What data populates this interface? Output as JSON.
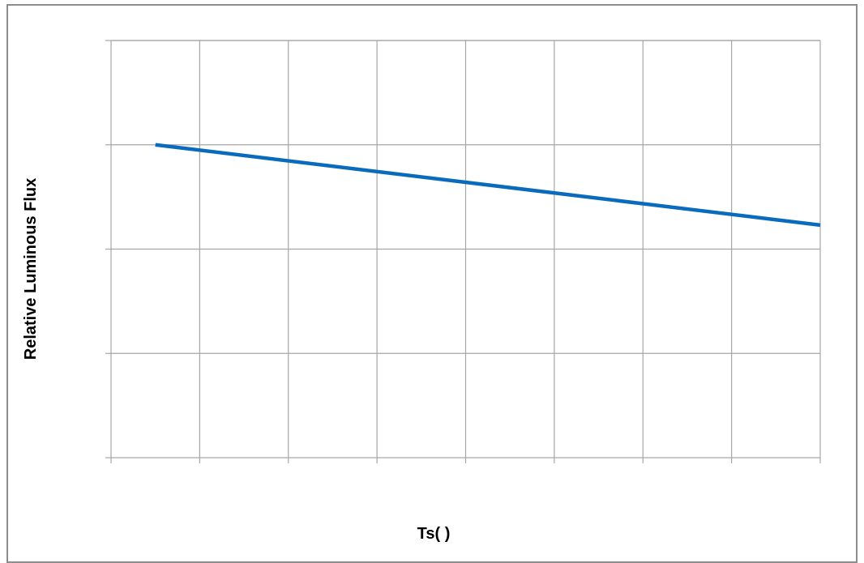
{
  "chart_data": {
    "type": "line",
    "title": "",
    "xlabel": "Ts(   )",
    "ylabel": "Relative Luminous Flux",
    "x_categories": 8,
    "y_divisions": 4,
    "grid": true,
    "legend": "none",
    "colors": {
      "line": "#0a6bbd",
      "grid": "#a6a6a6",
      "frame": "#8c8c8c"
    },
    "series": [
      {
        "x": [
          0.5,
          8.0
        ],
        "y": [
          3.0,
          2.23
        ]
      }
    ],
    "xlim": [
      0,
      8
    ],
    "ylim": [
      0,
      4
    ]
  }
}
